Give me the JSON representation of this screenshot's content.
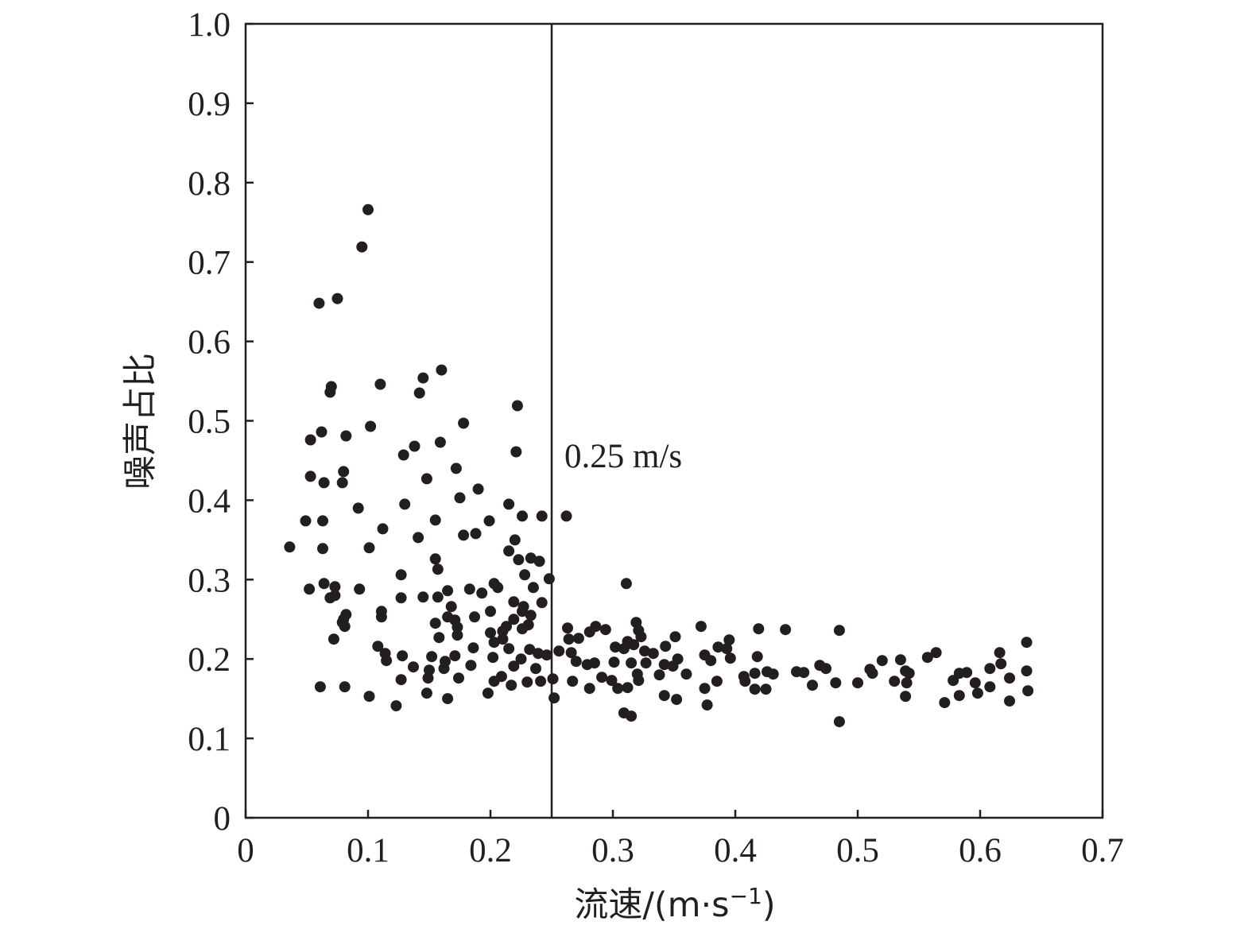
{
  "chart_data": {
    "type": "scatter",
    "xlabel_main": "流速/(m·s",
    "xlabel_sup": "−1",
    "xlabel_close": ")",
    "ylabel": "噪声占比",
    "xlim": [
      0,
      0.7
    ],
    "ylim": [
      0,
      1.0
    ],
    "x_ticks": [
      "0",
      "0.1",
      "0.2",
      "0.3",
      "0.4",
      "0.5",
      "0.6",
      "0.7"
    ],
    "y_ticks": [
      "0",
      "0.1",
      "0.2",
      "0.3",
      "0.4",
      "0.5",
      "0.6",
      "0.7",
      "0.8",
      "0.9",
      "1.0"
    ],
    "grid": false,
    "reference_line": {
      "x": 0.25,
      "label": "0.25 m/s"
    },
    "points": [
      [
        0.1,
        0.766
      ],
      [
        0.095,
        0.719
      ],
      [
        0.075,
        0.654
      ],
      [
        0.06,
        0.648
      ],
      [
        0.16,
        0.564
      ],
      [
        0.145,
        0.554
      ],
      [
        0.11,
        0.546
      ],
      [
        0.07,
        0.543
      ],
      [
        0.069,
        0.536
      ],
      [
        0.142,
        0.535
      ],
      [
        0.222,
        0.519
      ],
      [
        0.178,
        0.497
      ],
      [
        0.102,
        0.493
      ],
      [
        0.062,
        0.486
      ],
      [
        0.082,
        0.481
      ],
      [
        0.053,
        0.476
      ],
      [
        0.159,
        0.473
      ],
      [
        0.138,
        0.468
      ],
      [
        0.221,
        0.461
      ],
      [
        0.129,
        0.457
      ],
      [
        0.172,
        0.44
      ],
      [
        0.08,
        0.436
      ],
      [
        0.053,
        0.43
      ],
      [
        0.148,
        0.427
      ],
      [
        0.064,
        0.422
      ],
      [
        0.079,
        0.422
      ],
      [
        0.19,
        0.414
      ],
      [
        0.175,
        0.403
      ],
      [
        0.215,
        0.395
      ],
      [
        0.13,
        0.395
      ],
      [
        0.092,
        0.39
      ],
      [
        0.262,
        0.38
      ],
      [
        0.226,
        0.38
      ],
      [
        0.242,
        0.38
      ],
      [
        0.155,
        0.375
      ],
      [
        0.199,
        0.374
      ],
      [
        0.049,
        0.374
      ],
      [
        0.063,
        0.374
      ],
      [
        0.112,
        0.364
      ],
      [
        0.188,
        0.358
      ],
      [
        0.178,
        0.356
      ],
      [
        0.141,
        0.353
      ],
      [
        0.22,
        0.35
      ],
      [
        0.036,
        0.341
      ],
      [
        0.101,
        0.34
      ],
      [
        0.063,
        0.339
      ],
      [
        0.215,
        0.336
      ],
      [
        0.233,
        0.327
      ],
      [
        0.155,
        0.326
      ],
      [
        0.223,
        0.325
      ],
      [
        0.24,
        0.323
      ],
      [
        0.157,
        0.313
      ],
      [
        0.127,
        0.306
      ],
      [
        0.228,
        0.306
      ],
      [
        0.248,
        0.301
      ],
      [
        0.311,
        0.295
      ],
      [
        0.064,
        0.295
      ],
      [
        0.073,
        0.291
      ],
      [
        0.203,
        0.295
      ],
      [
        0.235,
        0.29
      ],
      [
        0.052,
        0.288
      ],
      [
        0.093,
        0.288
      ],
      [
        0.183,
        0.288
      ],
      [
        0.165,
        0.286
      ],
      [
        0.206,
        0.29
      ],
      [
        0.193,
        0.283
      ],
      [
        0.073,
        0.28
      ],
      [
        0.069,
        0.277
      ],
      [
        0.145,
        0.278
      ],
      [
        0.157,
        0.278
      ],
      [
        0.127,
        0.277
      ],
      [
        0.219,
        0.272
      ],
      [
        0.242,
        0.271
      ],
      [
        0.227,
        0.266
      ],
      [
        0.168,
        0.266
      ],
      [
        0.226,
        0.26
      ],
      [
        0.233,
        0.255
      ],
      [
        0.111,
        0.26
      ],
      [
        0.082,
        0.256
      ],
      [
        0.08,
        0.25
      ],
      [
        0.187,
        0.253
      ],
      [
        0.111,
        0.253
      ],
      [
        0.2,
        0.26
      ],
      [
        0.165,
        0.253
      ],
      [
        0.219,
        0.25
      ],
      [
        0.173,
        0.24
      ],
      [
        0.079,
        0.246
      ],
      [
        0.319,
        0.246
      ],
      [
        0.171,
        0.249
      ],
      [
        0.155,
        0.245
      ],
      [
        0.231,
        0.243
      ],
      [
        0.081,
        0.241
      ],
      [
        0.213,
        0.241
      ],
      [
        0.263,
        0.239
      ],
      [
        0.226,
        0.238
      ],
      [
        0.372,
        0.241
      ],
      [
        0.419,
        0.238
      ],
      [
        0.441,
        0.237
      ],
      [
        0.485,
        0.236
      ],
      [
        0.321,
        0.236
      ],
      [
        0.294,
        0.237
      ],
      [
        0.281,
        0.234
      ],
      [
        0.286,
        0.241
      ],
      [
        0.21,
        0.235
      ],
      [
        0.2,
        0.233
      ],
      [
        0.21,
        0.225
      ],
      [
        0.173,
        0.23
      ],
      [
        0.158,
        0.227
      ],
      [
        0.072,
        0.225
      ],
      [
        0.203,
        0.221
      ],
      [
        0.323,
        0.228
      ],
      [
        0.351,
        0.228
      ],
      [
        0.264,
        0.225
      ],
      [
        0.272,
        0.226
      ],
      [
        0.312,
        0.222
      ],
      [
        0.395,
        0.224
      ],
      [
        0.638,
        0.221
      ],
      [
        0.343,
        0.216
      ],
      [
        0.386,
        0.215
      ],
      [
        0.393,
        0.213
      ],
      [
        0.302,
        0.215
      ],
      [
        0.309,
        0.213
      ],
      [
        0.108,
        0.216
      ],
      [
        0.317,
        0.218
      ],
      [
        0.326,
        0.21
      ],
      [
        0.333,
        0.207
      ],
      [
        0.232,
        0.212
      ],
      [
        0.239,
        0.207
      ],
      [
        0.215,
        0.213
      ],
      [
        0.186,
        0.214
      ],
      [
        0.256,
        0.21
      ],
      [
        0.266,
        0.208
      ],
      [
        0.564,
        0.208
      ],
      [
        0.616,
        0.208
      ],
      [
        0.375,
        0.205
      ],
      [
        0.418,
        0.203
      ],
      [
        0.114,
        0.207
      ],
      [
        0.152,
        0.203
      ],
      [
        0.128,
        0.204
      ],
      [
        0.171,
        0.204
      ],
      [
        0.202,
        0.202
      ],
      [
        0.225,
        0.2
      ],
      [
        0.246,
        0.205
      ],
      [
        0.27,
        0.197
      ],
      [
        0.353,
        0.2
      ],
      [
        0.38,
        0.198
      ],
      [
        0.115,
        0.198
      ],
      [
        0.163,
        0.197
      ],
      [
        0.396,
        0.201
      ],
      [
        0.557,
        0.202
      ],
      [
        0.51,
        0.187
      ],
      [
        0.52,
        0.198
      ],
      [
        0.535,
        0.199
      ],
      [
        0.279,
        0.193
      ],
      [
        0.285,
        0.195
      ],
      [
        0.301,
        0.196
      ],
      [
        0.315,
        0.195
      ],
      [
        0.327,
        0.195
      ],
      [
        0.342,
        0.193
      ],
      [
        0.349,
        0.191
      ],
      [
        0.469,
        0.192
      ],
      [
        0.474,
        0.188
      ],
      [
        0.617,
        0.194
      ],
      [
        0.608,
        0.188
      ],
      [
        0.426,
        0.184
      ],
      [
        0.45,
        0.184
      ],
      [
        0.512,
        0.182
      ],
      [
        0.542,
        0.182
      ],
      [
        0.15,
        0.186
      ],
      [
        0.162,
        0.188
      ],
      [
        0.137,
        0.19
      ],
      [
        0.184,
        0.192
      ],
      [
        0.237,
        0.188
      ],
      [
        0.219,
        0.191
      ],
      [
        0.638,
        0.185
      ],
      [
        0.583,
        0.182
      ],
      [
        0.589,
        0.183
      ],
      [
        0.539,
        0.185
      ],
      [
        0.456,
        0.183
      ],
      [
        0.416,
        0.182
      ],
      [
        0.431,
        0.181
      ],
      [
        0.36,
        0.181
      ],
      [
        0.338,
        0.18
      ],
      [
        0.291,
        0.177
      ],
      [
        0.32,
        0.181
      ],
      [
        0.149,
        0.176
      ],
      [
        0.174,
        0.176
      ],
      [
        0.267,
        0.172
      ],
      [
        0.209,
        0.178
      ],
      [
        0.53,
        0.172
      ],
      [
        0.624,
        0.176
      ],
      [
        0.407,
        0.178
      ],
      [
        0.203,
        0.172
      ],
      [
        0.127,
        0.174
      ],
      [
        0.241,
        0.172
      ],
      [
        0.251,
        0.175
      ],
      [
        0.299,
        0.173
      ],
      [
        0.321,
        0.173
      ],
      [
        0.385,
        0.172
      ],
      [
        0.408,
        0.172
      ],
      [
        0.5,
        0.17
      ],
      [
        0.482,
        0.17
      ],
      [
        0.54,
        0.17
      ],
      [
        0.578,
        0.173
      ],
      [
        0.596,
        0.17
      ],
      [
        0.608,
        0.165
      ],
      [
        0.375,
        0.163
      ],
      [
        0.416,
        0.162
      ],
      [
        0.425,
        0.162
      ],
      [
        0.463,
        0.167
      ],
      [
        0.312,
        0.164
      ],
      [
        0.304,
        0.163
      ],
      [
        0.281,
        0.163
      ],
      [
        0.061,
        0.165
      ],
      [
        0.081,
        0.165
      ],
      [
        0.23,
        0.171
      ],
      [
        0.217,
        0.167
      ],
      [
        0.639,
        0.16
      ],
      [
        0.598,
        0.157
      ],
      [
        0.583,
        0.154
      ],
      [
        0.342,
        0.154
      ],
      [
        0.352,
        0.149
      ],
      [
        0.101,
        0.153
      ],
      [
        0.148,
        0.157
      ],
      [
        0.165,
        0.15
      ],
      [
        0.198,
        0.157
      ],
      [
        0.539,
        0.153
      ],
      [
        0.624,
        0.147
      ],
      [
        0.571,
        0.145
      ],
      [
        0.252,
        0.151
      ],
      [
        0.377,
        0.142
      ],
      [
        0.123,
        0.141
      ],
      [
        0.309,
        0.132
      ],
      [
        0.315,
        0.128
      ],
      [
        0.485,
        0.121
      ]
    ]
  }
}
